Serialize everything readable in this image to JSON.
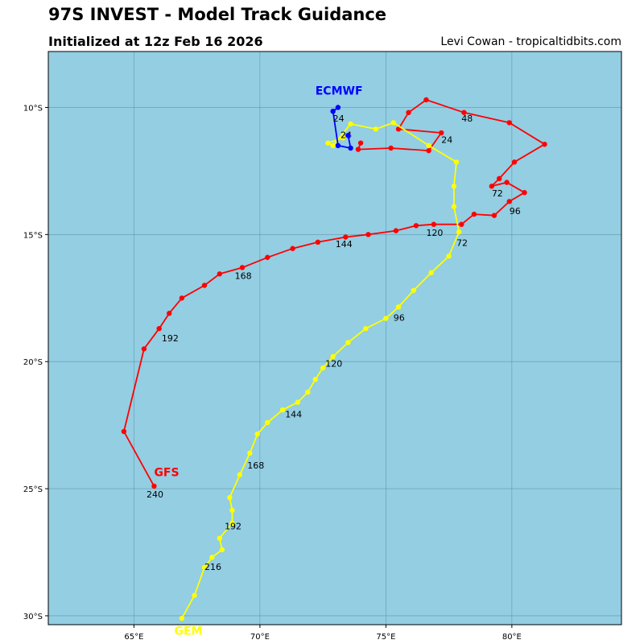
{
  "header": {
    "title": "97S INVEST - Model Track Guidance",
    "subtitle": "Initialized at 12z Feb 16 2026",
    "credit": "Levi Cowan - tropicaltidbits.com"
  },
  "colors": {
    "ocean": "#93cee3",
    "grid": "#5a8a9a",
    "frame": "#000000"
  },
  "chart_data": {
    "type": "map",
    "xlim": [
      61.6,
      84.35
    ],
    "ylim": [
      -30.35,
      -7.8
    ],
    "x_ticks": [
      {
        "value": 65,
        "label": "65°E"
      },
      {
        "value": 70,
        "label": "70°E"
      },
      {
        "value": 75,
        "label": "75°E"
      },
      {
        "value": 80,
        "label": "80°E"
      }
    ],
    "y_ticks": [
      {
        "value": -10,
        "label": "10°S"
      },
      {
        "value": -15,
        "label": "15°S"
      },
      {
        "value": -20,
        "label": "20°S"
      },
      {
        "value": -25,
        "label": "25°S"
      },
      {
        "value": -30,
        "label": "30°S"
      }
    ],
    "grid": true,
    "models": [
      {
        "name": "GFS",
        "color": "#ff0000",
        "label_pos": [
          65.8,
          -24.5
        ],
        "points": [
          [
            74.0,
            -11.4
          ],
          [
            73.9,
            -11.65
          ],
          [
            75.2,
            -11.6
          ],
          [
            76.7,
            -11.7
          ],
          [
            77.2,
            -11.0
          ],
          [
            75.5,
            -10.85
          ],
          [
            75.9,
            -10.2
          ],
          [
            76.6,
            -9.7
          ],
          [
            78.1,
            -10.2
          ],
          [
            79.9,
            -10.6
          ],
          [
            81.3,
            -11.45
          ],
          [
            80.1,
            -12.15
          ],
          [
            79.5,
            -12.8
          ],
          [
            79.2,
            -13.1
          ],
          [
            79.8,
            -12.95
          ],
          [
            80.5,
            -13.35
          ],
          [
            79.9,
            -13.7
          ],
          [
            79.3,
            -14.25
          ],
          [
            78.5,
            -14.2
          ],
          [
            78.0,
            -14.6
          ],
          [
            76.9,
            -14.6
          ],
          [
            76.2,
            -14.65
          ],
          [
            75.4,
            -14.85
          ],
          [
            74.3,
            -15.0
          ],
          [
            73.4,
            -15.1
          ],
          [
            72.3,
            -15.3
          ],
          [
            71.3,
            -15.55
          ],
          [
            70.3,
            -15.9
          ],
          [
            69.3,
            -16.3
          ],
          [
            68.4,
            -16.55
          ],
          [
            67.8,
            -17.0
          ],
          [
            66.9,
            -17.5
          ],
          [
            66.4,
            -18.1
          ],
          [
            66.0,
            -18.7
          ],
          [
            65.4,
            -19.5
          ],
          [
            64.6,
            -22.75
          ],
          [
            65.8,
            -24.9
          ]
        ],
        "labels": [
          {
            "text": "24",
            "pos": [
              77.2,
              -11.4
            ]
          },
          {
            "text": "48",
            "pos": [
              78.0,
              -10.55
            ]
          },
          {
            "text": "72",
            "pos": [
              79.2,
              -13.5
            ]
          },
          {
            "text": "96",
            "pos": [
              79.9,
              -14.2
            ]
          },
          {
            "text": "120",
            "pos": [
              76.6,
              -15.05
            ]
          },
          {
            "text": "144",
            "pos": [
              73.0,
              -15.5
            ]
          },
          {
            "text": "168",
            "pos": [
              69.0,
              -16.75
            ]
          },
          {
            "text": "192",
            "pos": [
              66.1,
              -19.2
            ]
          },
          {
            "text": "240",
            "pos": [
              65.5,
              -25.35
            ]
          }
        ]
      },
      {
        "name": "GEM",
        "color": "#ffff00",
        "label_pos": [
          66.6,
          -30.75
        ],
        "points": [
          [
            73.3,
            -11.2
          ],
          [
            72.7,
            -11.4
          ],
          [
            72.9,
            -11.5
          ],
          [
            73.6,
            -10.65
          ],
          [
            74.6,
            -10.85
          ],
          [
            75.3,
            -10.6
          ],
          [
            76.7,
            -11.5
          ],
          [
            77.8,
            -12.15
          ],
          [
            77.7,
            -13.1
          ],
          [
            77.7,
            -13.9
          ],
          [
            77.9,
            -14.9
          ],
          [
            77.5,
            -15.85
          ],
          [
            76.8,
            -16.5
          ],
          [
            76.1,
            -17.2
          ],
          [
            75.5,
            -17.85
          ],
          [
            75.0,
            -18.3
          ],
          [
            74.2,
            -18.7
          ],
          [
            73.5,
            -19.25
          ],
          [
            72.9,
            -19.8
          ],
          [
            72.5,
            -20.25
          ],
          [
            72.2,
            -20.7
          ],
          [
            71.9,
            -21.2
          ],
          [
            71.5,
            -21.6
          ],
          [
            70.9,
            -21.9
          ],
          [
            70.3,
            -22.4
          ],
          [
            69.9,
            -22.85
          ],
          [
            69.6,
            -23.6
          ],
          [
            69.2,
            -24.45
          ],
          [
            68.8,
            -25.35
          ],
          [
            68.9,
            -25.85
          ],
          [
            68.9,
            -26.35
          ],
          [
            68.4,
            -26.95
          ],
          [
            68.5,
            -27.4
          ],
          [
            68.1,
            -27.7
          ],
          [
            67.8,
            -28.1
          ],
          [
            67.4,
            -29.2
          ],
          [
            66.9,
            -30.1
          ]
        ],
        "labels": [
          {
            "text": "24",
            "pos": [
              73.2,
              -11.2
            ]
          },
          {
            "text": "72",
            "pos": [
              77.8,
              -15.45
            ]
          },
          {
            "text": "96",
            "pos": [
              75.3,
              -18.4
            ]
          },
          {
            "text": "120",
            "pos": [
              72.6,
              -20.2
            ]
          },
          {
            "text": "144",
            "pos": [
              71.0,
              -22.2
            ]
          },
          {
            "text": "168",
            "pos": [
              69.5,
              -24.2
            ]
          },
          {
            "text": "192",
            "pos": [
              68.6,
              -26.6
            ]
          },
          {
            "text": "216",
            "pos": [
              67.8,
              -28.2
            ]
          }
        ]
      },
      {
        "name": "ECMWF",
        "color": "#0000ff",
        "label_pos": [
          72.2,
          -9.5
        ],
        "points": [
          [
            73.1,
            -10.0
          ],
          [
            72.9,
            -10.15
          ],
          [
            73.1,
            -11.5
          ],
          [
            73.6,
            -11.6
          ],
          [
            73.5,
            -11.1
          ]
        ],
        "labels": [
          {
            "text": "24",
            "pos": [
              72.9,
              -10.55
            ]
          }
        ]
      }
    ]
  }
}
